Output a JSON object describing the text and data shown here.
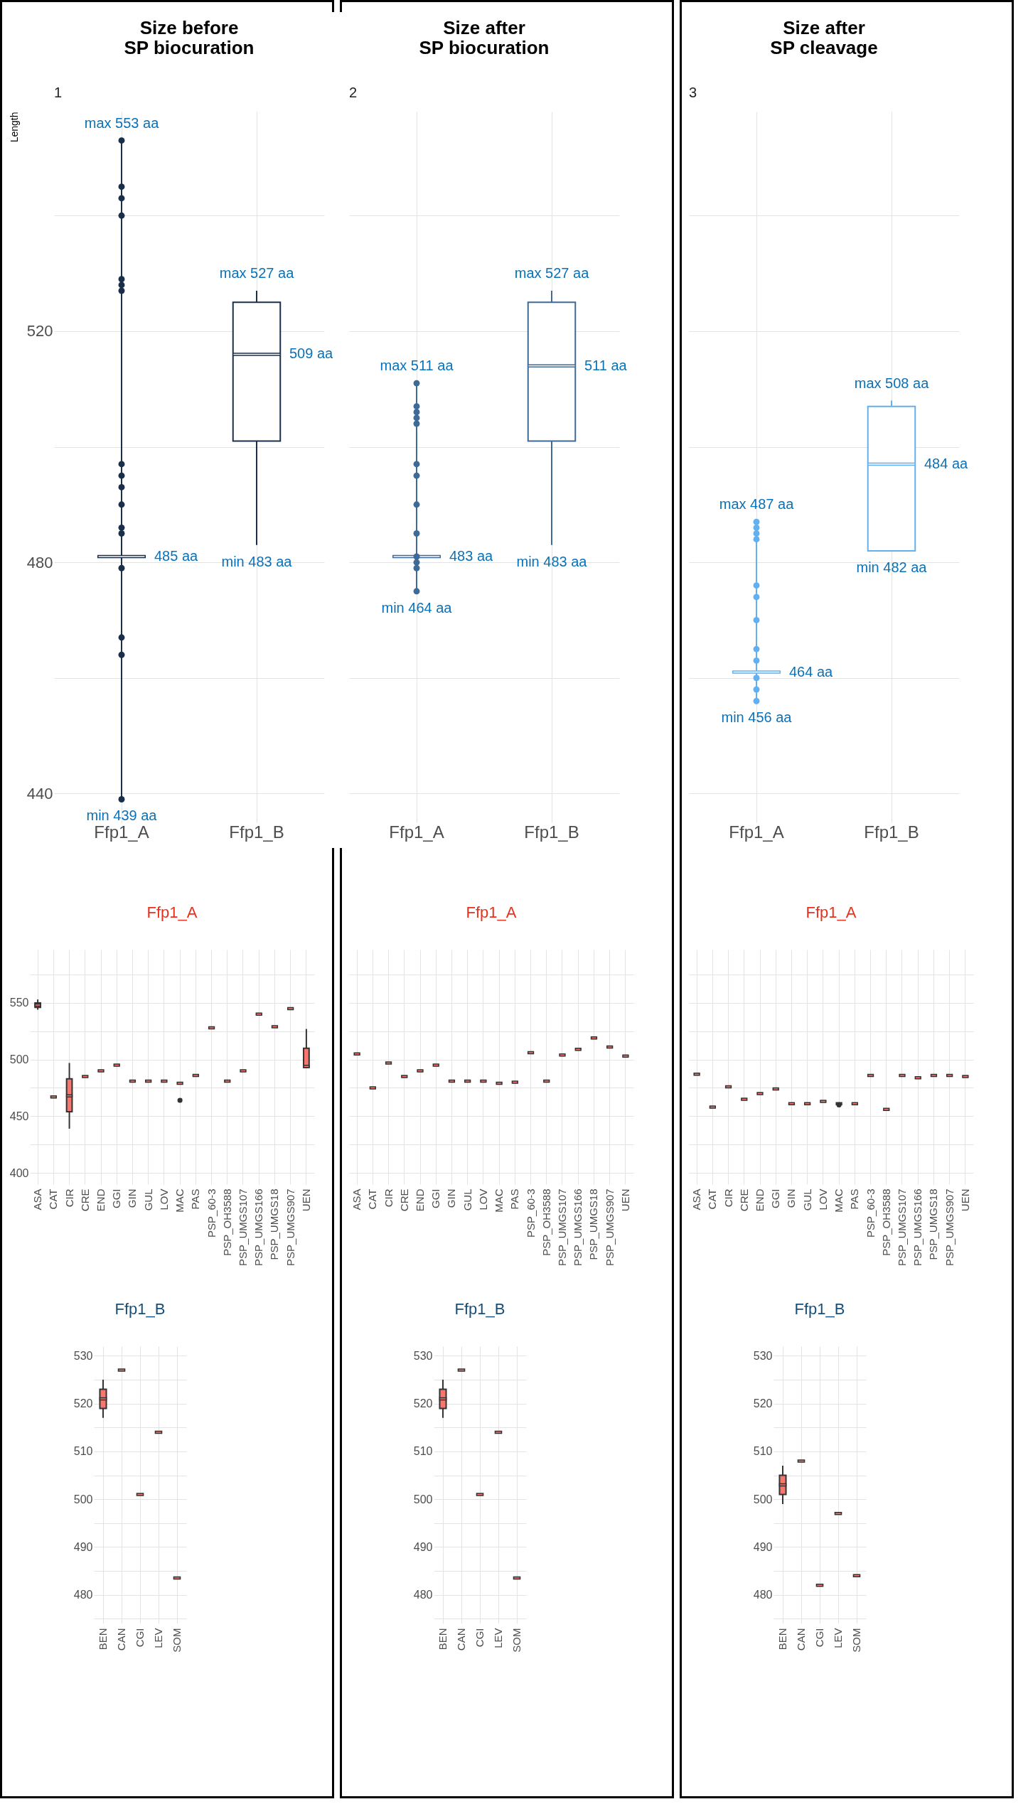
{
  "chart_data": [
    {
      "type": "box",
      "title": "Size before SP biocuration",
      "ylabel": "Length",
      "categories": [
        "Ffp1_A",
        "Ffp1_B"
      ],
      "ylim": [
        435,
        558
      ],
      "yticks": [
        440,
        {
          "value": 460,
          "label": null
        },
        480,
        {
          "value": 500,
          "label": null
        },
        520,
        {
          "value": 540,
          "label": null
        }
      ],
      "grid": true,
      "marker": "circle",
      "series": [
        {
          "type": "box",
          "color": "#ffffff",
          "boxes": [
            {
              "low": 439,
              "q1": 481,
              "median": 481,
              "q3": 481,
              "high": 553
            },
            {
              "low": 483,
              "q1": 501,
              "median": 516,
              "q3": 525,
              "high": 527
            }
          ]
        },
        {
          "type": "scatter",
          "color": "#1b2f4a",
          "x": [
            "Ffp1_A",
            "Ffp1_A",
            "Ffp1_A",
            "Ffp1_A",
            "Ffp1_A",
            "Ffp1_A",
            "Ffp1_A",
            "Ffp1_A",
            "Ffp1_A",
            "Ffp1_A",
            "Ffp1_A",
            "Ffp1_A",
            "Ffp1_A",
            "Ffp1_A",
            "Ffp1_A",
            "Ffp1_A",
            "Ffp1_A"
          ],
          "values": [
            553,
            545,
            543,
            540,
            529,
            528,
            527,
            497,
            495,
            493,
            490,
            486,
            485,
            479,
            467,
            464,
            439
          ]
        }
      ],
      "annotations": [
        "1",
        {
          "text": "max 553 aa",
          "x": "Ffp1_A",
          "y": 553
        },
        {
          "text": "485 aa",
          "x": "Ffp1_A",
          "y": 481
        },
        {
          "text": "min 439 aa",
          "x": "Ffp1_A",
          "y": 439
        },
        {
          "text": "max 527 aa",
          "x": "Ffp1_B",
          "y": 527
        },
        {
          "text": "509 aa",
          "x": "Ffp1_B",
          "y": 516
        },
        {
          "text": "min 483 aa",
          "x": "Ffp1_B",
          "y": 483
        }
      ]
    },
    {
      "type": "box",
      "title": "Size after SP biocuration",
      "categories": [
        "Ffp1_A",
        "Ffp1_B"
      ],
      "ylim": [
        435,
        558
      ],
      "yticks": [
        440,
        {
          "value": 460,
          "label": null
        },
        480,
        {
          "value": 500,
          "label": null
        },
        520,
        {
          "value": 540,
          "label": null
        }
      ],
      "grid": true,
      "marker": "circle",
      "tick_labels": "x",
      "series": [
        {
          "type": "box",
          "color": "#ffffff",
          "boxes": [
            {
              "low": 475,
              "q1": 481,
              "median": 481,
              "q3": 481,
              "high": 511
            },
            {
              "low": 483,
              "q1": 501,
              "median": 514,
              "q3": 525,
              "high": 527
            }
          ]
        },
        {
          "type": "scatter",
          "color": "#3d6a96",
          "x": [
            "Ffp1_A",
            "Ffp1_A",
            "Ffp1_A",
            "Ffp1_A",
            "Ffp1_A",
            "Ffp1_A",
            "Ffp1_A",
            "Ffp1_A",
            "Ffp1_A",
            "Ffp1_A",
            "Ffp1_A",
            "Ffp1_A",
            "Ffp1_A"
          ],
          "values": [
            511,
            507,
            506,
            505,
            504,
            497,
            495,
            490,
            485,
            481,
            480,
            479,
            475
          ]
        }
      ],
      "annotations": [
        "2",
        {
          "text": "max 511 aa",
          "x": "Ffp1_A",
          "y": 511
        },
        {
          "text": "483 aa",
          "x": "Ffp1_A",
          "y": 481
        },
        {
          "text": "min 464 aa",
          "x": "Ffp1_A",
          "y": 475
        },
        {
          "text": "max 527 aa",
          "x": "Ffp1_B",
          "y": 527
        },
        {
          "text": "511 aa",
          "x": "Ffp1_B",
          "y": 514
        },
        {
          "text": "min 483 aa",
          "x": "Ffp1_B",
          "y": 483
        }
      ]
    },
    {
      "type": "box",
      "title": "Size after SP cleavage",
      "categories": [
        "Ffp1_A",
        "Ffp1_B"
      ],
      "ylim": [
        435,
        558
      ],
      "yticks": [
        440,
        {
          "value": 460,
          "label": null
        },
        480,
        {
          "value": 500,
          "label": null
        },
        520,
        {
          "value": 540,
          "label": null
        }
      ],
      "grid": true,
      "marker": "circle",
      "tick_labels": "x",
      "series": [
        {
          "type": "box",
          "color": "#ffffff",
          "boxes": [
            {
              "low": 456,
              "q1": 461,
              "median": 461,
              "q3": 461,
              "high": 487
            },
            {
              "low": 482,
              "q1": 482,
              "median": 497,
              "q3": 507,
              "high": 508
            }
          ]
        },
        {
          "type": "scatter",
          "color": "#63b0f0",
          "x": [
            "Ffp1_A",
            "Ffp1_A",
            "Ffp1_A",
            "Ffp1_A",
            "Ffp1_A",
            "Ffp1_A",
            "Ffp1_A",
            "Ffp1_A",
            "Ffp1_A",
            "Ffp1_A",
            "Ffp1_A",
            "Ffp1_A"
          ],
          "values": [
            487,
            486,
            485,
            484,
            476,
            474,
            470,
            465,
            463,
            460,
            458,
            456
          ]
        }
      ],
      "annotations": [
        "3",
        {
          "text": "max 487 aa",
          "x": "Ffp1_A",
          "y": 487
        },
        {
          "text": "464 aa",
          "x": "Ffp1_A",
          "y": 461
        },
        {
          "text": "min 456 aa",
          "x": "Ffp1_A",
          "y": 456
        },
        {
          "text": "max 508 aa",
          "x": "Ffp1_B",
          "y": 508
        },
        {
          "text": "484 aa",
          "x": "Ffp1_B",
          "y": 497
        },
        {
          "text": "min 482 aa",
          "x": "Ffp1_B",
          "y": 482
        }
      ]
    },
    {
      "type": "box",
      "title": "Ffp1_A",
      "categories": [
        "ASA",
        "CAT",
        "CIR",
        "CRE",
        "END",
        "GGI",
        "GIN",
        "GUL",
        "LOV",
        "MAC",
        "PAS",
        "PSP_60-3",
        "PSP_OH3588",
        "PSP_UMGS107",
        "PSP_UMGS166",
        "PSP_UMGS18",
        "PSP_UMGS907",
        "UEN"
      ],
      "ylim": [
        390,
        597
      ],
      "yticks": [
        400,
        {
          "value": 425,
          "label": null
        },
        450,
        {
          "value": 475,
          "label": null
        },
        500,
        {
          "value": 525,
          "label": null
        },
        550,
        {
          "value": 575,
          "label": null
        }
      ],
      "grid": true,
      "marker": "circle",
      "series": [
        {
          "type": "box",
          "color": "#f8766d",
          "boxes": [
            {
              "low": 544,
              "q1": 546,
              "median": 548,
              "q3": 550,
              "high": 553
            },
            {
              "low": 467,
              "q1": 467,
              "median": 467,
              "q3": 467,
              "high": 467
            },
            {
              "low": 439,
              "q1": 454,
              "median": 468,
              "q3": 483,
              "high": 497
            },
            {
              "low": 485,
              "q1": 485,
              "median": 485,
              "q3": 485,
              "high": 485
            },
            {
              "low": 490,
              "q1": 490,
              "median": 490,
              "q3": 490,
              "high": 490
            },
            {
              "low": 495,
              "q1": 495,
              "median": 495,
              "q3": 495,
              "high": 495
            },
            {
              "low": 481,
              "q1": 481,
              "median": 481,
              "q3": 481,
              "high": 481
            },
            {
              "low": 481,
              "q1": 481,
              "median": 481,
              "q3": 481,
              "high": 481
            },
            {
              "low": 481,
              "q1": 481,
              "median": 481,
              "q3": 481,
              "high": 481
            },
            {
              "low": 479,
              "q1": 479,
              "median": 479,
              "q3": 479,
              "high": 479,
              "outliers": [
                464
              ]
            },
            {
              "low": 486,
              "q1": 486,
              "median": 486,
              "q3": 486,
              "high": 486
            },
            {
              "low": 528,
              "q1": 528,
              "median": 528,
              "q3": 528,
              "high": 528
            },
            {
              "low": 481,
              "q1": 481,
              "median": 481,
              "q3": 481,
              "high": 481
            },
            {
              "low": 490,
              "q1": 490,
              "median": 490,
              "q3": 490,
              "high": 490
            },
            {
              "low": 540,
              "q1": 540,
              "median": 540,
              "q3": 540,
              "high": 540
            },
            {
              "low": 529,
              "q1": 529,
              "median": 529,
              "q3": 529,
              "high": 529
            },
            {
              "low": 545,
              "q1": 545,
              "median": 545,
              "q3": 545,
              "high": 545
            },
            {
              "low": 493,
              "q1": 493,
              "median": 494,
              "q3": 510,
              "high": 527
            }
          ]
        }
      ]
    },
    {
      "type": "box",
      "title": "Ffp1_A",
      "categories": [
        "ASA",
        "CAT",
        "CIR",
        "CRE",
        "END",
        "GGI",
        "GIN",
        "GUL",
        "LOV",
        "MAC",
        "PAS",
        "PSP_60-3",
        "PSP_OH3588",
        "PSP_UMGS107",
        "PSP_UMGS166",
        "PSP_UMGS18",
        "PSP_UMGS907",
        "UEN"
      ],
      "ylim": [
        390,
        597
      ],
      "yticks": [
        400,
        {
          "value": 425,
          "label": null
        },
        450,
        {
          "value": 475,
          "label": null
        },
        500,
        {
          "value": 525,
          "label": null
        },
        550,
        {
          "value": 575,
          "label": null
        }
      ],
      "grid": true,
      "tick_labels": "x",
      "series": [
        {
          "type": "box",
          "color": "#f8766d",
          "boxes": [
            {
              "low": 505,
              "q1": 505,
              "median": 505,
              "q3": 505,
              "high": 505
            },
            {
              "low": 475,
              "q1": 475,
              "median": 475,
              "q3": 475,
              "high": 475
            },
            {
              "low": 497,
              "q1": 497,
              "median": 497,
              "q3": 497,
              "high": 497
            },
            {
              "low": 485,
              "q1": 485,
              "median": 485,
              "q3": 485,
              "high": 485
            },
            {
              "low": 490,
              "q1": 490,
              "median": 490,
              "q3": 490,
              "high": 490
            },
            {
              "low": 495,
              "q1": 495,
              "median": 495,
              "q3": 495,
              "high": 495
            },
            {
              "low": 481,
              "q1": 481,
              "median": 481,
              "q3": 481,
              "high": 481
            },
            {
              "low": 481,
              "q1": 481,
              "median": 481,
              "q3": 481,
              "high": 481
            },
            {
              "low": 481,
              "q1": 481,
              "median": 481,
              "q3": 481,
              "high": 481
            },
            {
              "low": 479,
              "q1": 479,
              "median": 479,
              "q3": 479,
              "high": 479
            },
            {
              "low": 480,
              "q1": 480,
              "median": 480,
              "q3": 480,
              "high": 480
            },
            {
              "low": 506,
              "q1": 506,
              "median": 506,
              "q3": 506,
              "high": 506
            },
            {
              "low": 481,
              "q1": 481,
              "median": 481,
              "q3": 481,
              "high": 481
            },
            {
              "low": 504,
              "q1": 504,
              "median": 504,
              "q3": 504,
              "high": 504
            },
            {
              "low": 509,
              "q1": 509,
              "median": 509,
              "q3": 509,
              "high": 509
            },
            {
              "low": 519,
              "q1": 519,
              "median": 519,
              "q3": 519,
              "high": 519
            },
            {
              "low": 511,
              "q1": 511,
              "median": 511,
              "q3": 511,
              "high": 511
            },
            {
              "low": 503,
              "q1": 503,
              "median": 503,
              "q3": 503,
              "high": 503
            }
          ]
        }
      ]
    },
    {
      "type": "box",
      "title": "Ffp1_A",
      "categories": [
        "ASA",
        "CAT",
        "CIR",
        "CRE",
        "END",
        "GGI",
        "GIN",
        "GUL",
        "LOV",
        "MAC",
        "PAS",
        "PSP_60-3",
        "PSP_OH3588",
        "PSP_UMGS107",
        "PSP_UMGS166",
        "PSP_UMGS18",
        "PSP_UMGS907",
        "UEN"
      ],
      "ylim": [
        390,
        597
      ],
      "yticks": [
        400,
        {
          "value": 425,
          "label": null
        },
        450,
        {
          "value": 475,
          "label": null
        },
        500,
        {
          "value": 525,
          "label": null
        },
        550,
        {
          "value": 575,
          "label": null
        }
      ],
      "grid": true,
      "marker": "circle",
      "tick_labels": "x",
      "series": [
        {
          "type": "box",
          "color": "#f8766d",
          "boxes": [
            {
              "low": 487,
              "q1": 487,
              "median": 487,
              "q3": 487,
              "high": 487
            },
            {
              "low": 458,
              "q1": 458,
              "median": 458,
              "q3": 458,
              "high": 458
            },
            {
              "low": 476,
              "q1": 476,
              "median": 476,
              "q3": 476,
              "high": 476
            },
            {
              "low": 465,
              "q1": 465,
              "median": 465,
              "q3": 465,
              "high": 465
            },
            {
              "low": 470,
              "q1": 470,
              "median": 470,
              "q3": 470,
              "high": 470
            },
            {
              "low": 474,
              "q1": 474,
              "median": 474,
              "q3": 474,
              "high": 474
            },
            {
              "low": 461,
              "q1": 461,
              "median": 461,
              "q3": 461,
              "high": 461
            },
            {
              "low": 461,
              "q1": 461,
              "median": 461,
              "q3": 461,
              "high": 461
            },
            {
              "low": 463,
              "q1": 463,
              "median": 463,
              "q3": 463,
              "high": 463
            },
            {
              "low": 461,
              "q1": 461,
              "median": 461,
              "q3": 461,
              "high": 461,
              "outliers": [
                460
              ]
            },
            {
              "low": 461,
              "q1": 461,
              "median": 461,
              "q3": 461,
              "high": 461
            },
            {
              "low": 486,
              "q1": 486,
              "median": 486,
              "q3": 486,
              "high": 486
            },
            {
              "low": 456,
              "q1": 456,
              "median": 456,
              "q3": 456,
              "high": 456
            },
            {
              "low": 486,
              "q1": 486,
              "median": 486,
              "q3": 486,
              "high": 486
            },
            {
              "low": 484,
              "q1": 484,
              "median": 484,
              "q3": 484,
              "high": 484
            },
            {
              "low": 486,
              "q1": 486,
              "median": 486,
              "q3": 486,
              "high": 486
            },
            {
              "low": 486,
              "q1": 486,
              "median": 486,
              "q3": 486,
              "high": 486
            },
            {
              "low": 485,
              "q1": 485,
              "median": 485,
              "q3": 485,
              "high": 485
            }
          ]
        }
      ]
    },
    {
      "type": "box",
      "title": "Ffp1_B",
      "categories": [
        "BEN",
        "CAN",
        "CGI",
        "LEV",
        "SOM"
      ],
      "ylim": [
        474,
        532
      ],
      "yticks": [
        {
          "value": 475,
          "label": null
        },
        480,
        {
          "value": 485,
          "label": null
        },
        490,
        {
          "value": 495,
          "label": null
        },
        500,
        {
          "value": 505,
          "label": null
        },
        510,
        {
          "value": 515,
          "label": null
        },
        520,
        {
          "value": 525,
          "label": null
        },
        530
      ],
      "grid": true,
      "series": [
        {
          "type": "box",
          "color": "#f8766d",
          "boxes": [
            {
              "low": 517,
              "q1": 519,
              "median": 521,
              "q3": 523,
              "high": 525
            },
            {
              "low": 527,
              "q1": 527,
              "median": 527,
              "q3": 527,
              "high": 527
            },
            {
              "low": 501,
              "q1": 501,
              "median": 501,
              "q3": 501,
              "high": 501
            },
            {
              "low": 514,
              "q1": 514,
              "median": 514,
              "q3": 514,
              "high": 514
            },
            {
              "low": 483.5,
              "q1": 483.5,
              "median": 483.5,
              "q3": 483.5,
              "high": 483.5
            }
          ]
        }
      ]
    },
    {
      "type": "box",
      "title": "Ffp1_B",
      "categories": [
        "BEN",
        "CAN",
        "CGI",
        "LEV",
        "SOM"
      ],
      "ylim": [
        474,
        532
      ],
      "yticks": [
        {
          "value": 475,
          "label": null
        },
        480,
        {
          "value": 485,
          "label": null
        },
        490,
        {
          "value": 495,
          "label": null
        },
        500,
        {
          "value": 505,
          "label": null
        },
        510,
        {
          "value": 515,
          "label": null
        },
        520,
        {
          "value": 525,
          "label": null
        },
        530
      ],
      "grid": true,
      "series": [
        {
          "type": "box",
          "color": "#f8766d",
          "boxes": [
            {
              "low": 517,
              "q1": 519,
              "median": 521,
              "q3": 523,
              "high": 525
            },
            {
              "low": 527,
              "q1": 527,
              "median": 527,
              "q3": 527,
              "high": 527
            },
            {
              "low": 501,
              "q1": 501,
              "median": 501,
              "q3": 501,
              "high": 501
            },
            {
              "low": 514,
              "q1": 514,
              "median": 514,
              "q3": 514,
              "high": 514
            },
            {
              "low": 483.5,
              "q1": 483.5,
              "median": 483.5,
              "q3": 483.5,
              "high": 483.5
            }
          ]
        }
      ]
    },
    {
      "type": "box",
      "title": "Ffp1_B",
      "categories": [
        "BEN",
        "CAN",
        "CGI",
        "LEV",
        "SOM"
      ],
      "ylim": [
        474,
        532
      ],
      "yticks": [
        {
          "value": 475,
          "label": null
        },
        480,
        {
          "value": 485,
          "label": null
        },
        490,
        {
          "value": 495,
          "label": null
        },
        500,
        {
          "value": 505,
          "label": null
        },
        510,
        {
          "value": 515,
          "label": null
        },
        520,
        {
          "value": 525,
          "label": null
        },
        530
      ],
      "grid": true,
      "series": [
        {
          "type": "box",
          "color": "#f8766d",
          "boxes": [
            {
              "low": 499,
              "q1": 501,
              "median": 503,
              "q3": 505,
              "high": 507
            },
            {
              "low": 508,
              "q1": 508,
              "median": 508,
              "q3": 508,
              "high": 508
            },
            {
              "low": 482,
              "q1": 482,
              "median": 482,
              "q3": 482,
              "high": 482
            },
            {
              "low": 497,
              "q1": 497,
              "median": 497,
              "q3": 497,
              "high": 497
            },
            {
              "low": 484,
              "q1": 484,
              "median": 484,
              "q3": 484,
              "high": 484
            }
          ]
        }
      ]
    }
  ]
}
